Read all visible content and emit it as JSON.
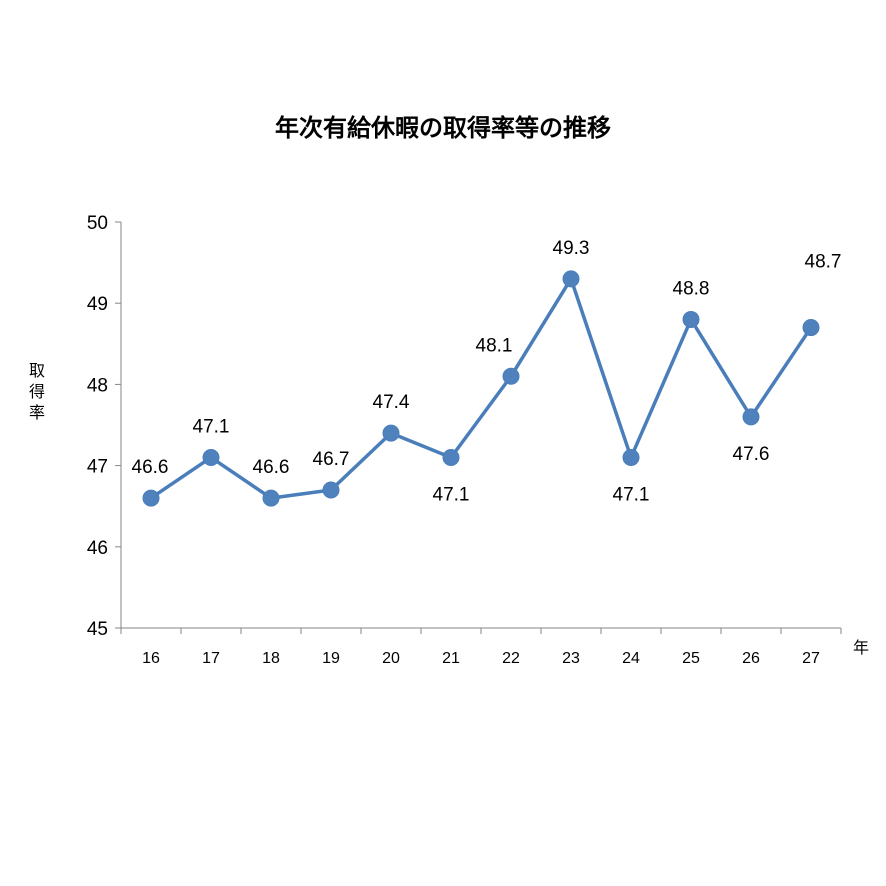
{
  "chart_data": {
    "type": "line",
    "title": "年次有給休暇の取得率等の推移",
    "xlabel": "年",
    "ylabel": "取得率",
    "categories": [
      "16",
      "17",
      "18",
      "19",
      "20",
      "21",
      "22",
      "23",
      "24",
      "25",
      "26",
      "27"
    ],
    "values": [
      46.6,
      47.1,
      46.6,
      46.7,
      47.4,
      47.1,
      48.1,
      49.3,
      47.1,
      48.8,
      47.6,
      48.7
    ],
    "data_labels": [
      "46.6",
      "47.1",
      "46.6",
      "46.7",
      "47.4",
      "47.1",
      "48.1",
      "49.3",
      "47.1",
      "48.8",
      "47.6",
      "48.7"
    ],
    "label_positions": [
      "above",
      "above",
      "above",
      "above",
      "above",
      "below",
      "above",
      "above",
      "below",
      "above",
      "below",
      "above"
    ],
    "ylim": [
      45,
      50
    ],
    "yticks": [
      "45",
      "46",
      "47",
      "48",
      "49",
      "50"
    ],
    "grid": false,
    "legend": "none",
    "line_color": "#4a7ebb",
    "marker_color": "#4f81bd"
  }
}
